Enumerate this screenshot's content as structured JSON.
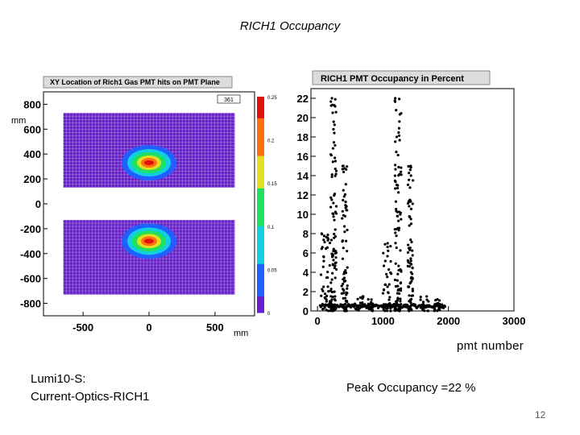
{
  "slide": {
    "title": "RICH1  Occupancy",
    "lumi_line1": "Lumi10-S:",
    "lumi_line2": "Current-Optics-RICH1",
    "peak_text": "Peak Occupancy =22 %",
    "pmt_axis_label": "pmt  number",
    "mm_left": "mm",
    "mm_bottom": "mm",
    "page_number": "12"
  },
  "chart_data": [
    {
      "type": "heatmap",
      "title": "XY Location of Rich1 Gas PMT hits on PMT Plane",
      "stats_box": "361",
      "xlabel": "mm",
      "ylabel": "mm",
      "xlim": [
        -800,
        800
      ],
      "ylim": [
        -900,
        900
      ],
      "x_ticks": [
        -500,
        0,
        500
      ],
      "y_ticks": [
        800,
        600,
        400,
        200,
        0,
        -200,
        -400,
        -600,
        -800
      ],
      "colorbar_ticks": [
        "0.25",
        "0.2",
        "0.15",
        "0.1",
        "0.05",
        "0"
      ],
      "colorbar_range": [
        0,
        0.25
      ],
      "colors": [
        "#6a1fd0",
        "#2060ff",
        "#10d0e0",
        "#20e060",
        "#e0e020",
        "#ff7010",
        "#e01010"
      ],
      "panels": [
        {
          "name": "upper",
          "x_range": [
            -650,
            650
          ],
          "y_range": [
            130,
            730
          ],
          "hotspot": {
            "x": 0,
            "y": 330,
            "peak": 0.25
          }
        },
        {
          "name": "lower",
          "x_range": [
            -650,
            650
          ],
          "y_range": [
            -730,
            -130
          ],
          "hotspot": {
            "x": 0,
            "y": -300,
            "peak": 0.25
          }
        }
      ]
    },
    {
      "type": "scatter",
      "title": "RICH1 PMT Occupancy in Percent",
      "xlabel": "pmt  number",
      "ylabel": "",
      "xlim": [
        -100,
        3000
      ],
      "ylim": [
        0,
        23
      ],
      "x_ticks": [
        0,
        1000,
        2000,
        3000
      ],
      "y_ticks": [
        0,
        2,
        4,
        6,
        8,
        10,
        12,
        14,
        16,
        18,
        20,
        22
      ],
      "clusters": [
        {
          "x_range": [
            50,
            200
          ],
          "max": 8
        },
        {
          "x_range": [
            200,
            290
          ],
          "max": 22
        },
        {
          "x_range": [
            370,
            460
          ],
          "max": 15
        },
        {
          "x_range": [
            550,
            700
          ],
          "max": 1.5
        },
        {
          "x_range": [
            750,
            850
          ],
          "max": 1.2
        },
        {
          "x_range": [
            1000,
            1130
          ],
          "max": 7
        },
        {
          "x_range": [
            1180,
            1280
          ],
          "max": 22
        },
        {
          "x_range": [
            1380,
            1460
          ],
          "max": 15
        },
        {
          "x_range": [
            1550,
            1700
          ],
          "max": 1.5
        },
        {
          "x_range": [
            1780,
            1870
          ],
          "max": 1.2
        }
      ]
    }
  ]
}
